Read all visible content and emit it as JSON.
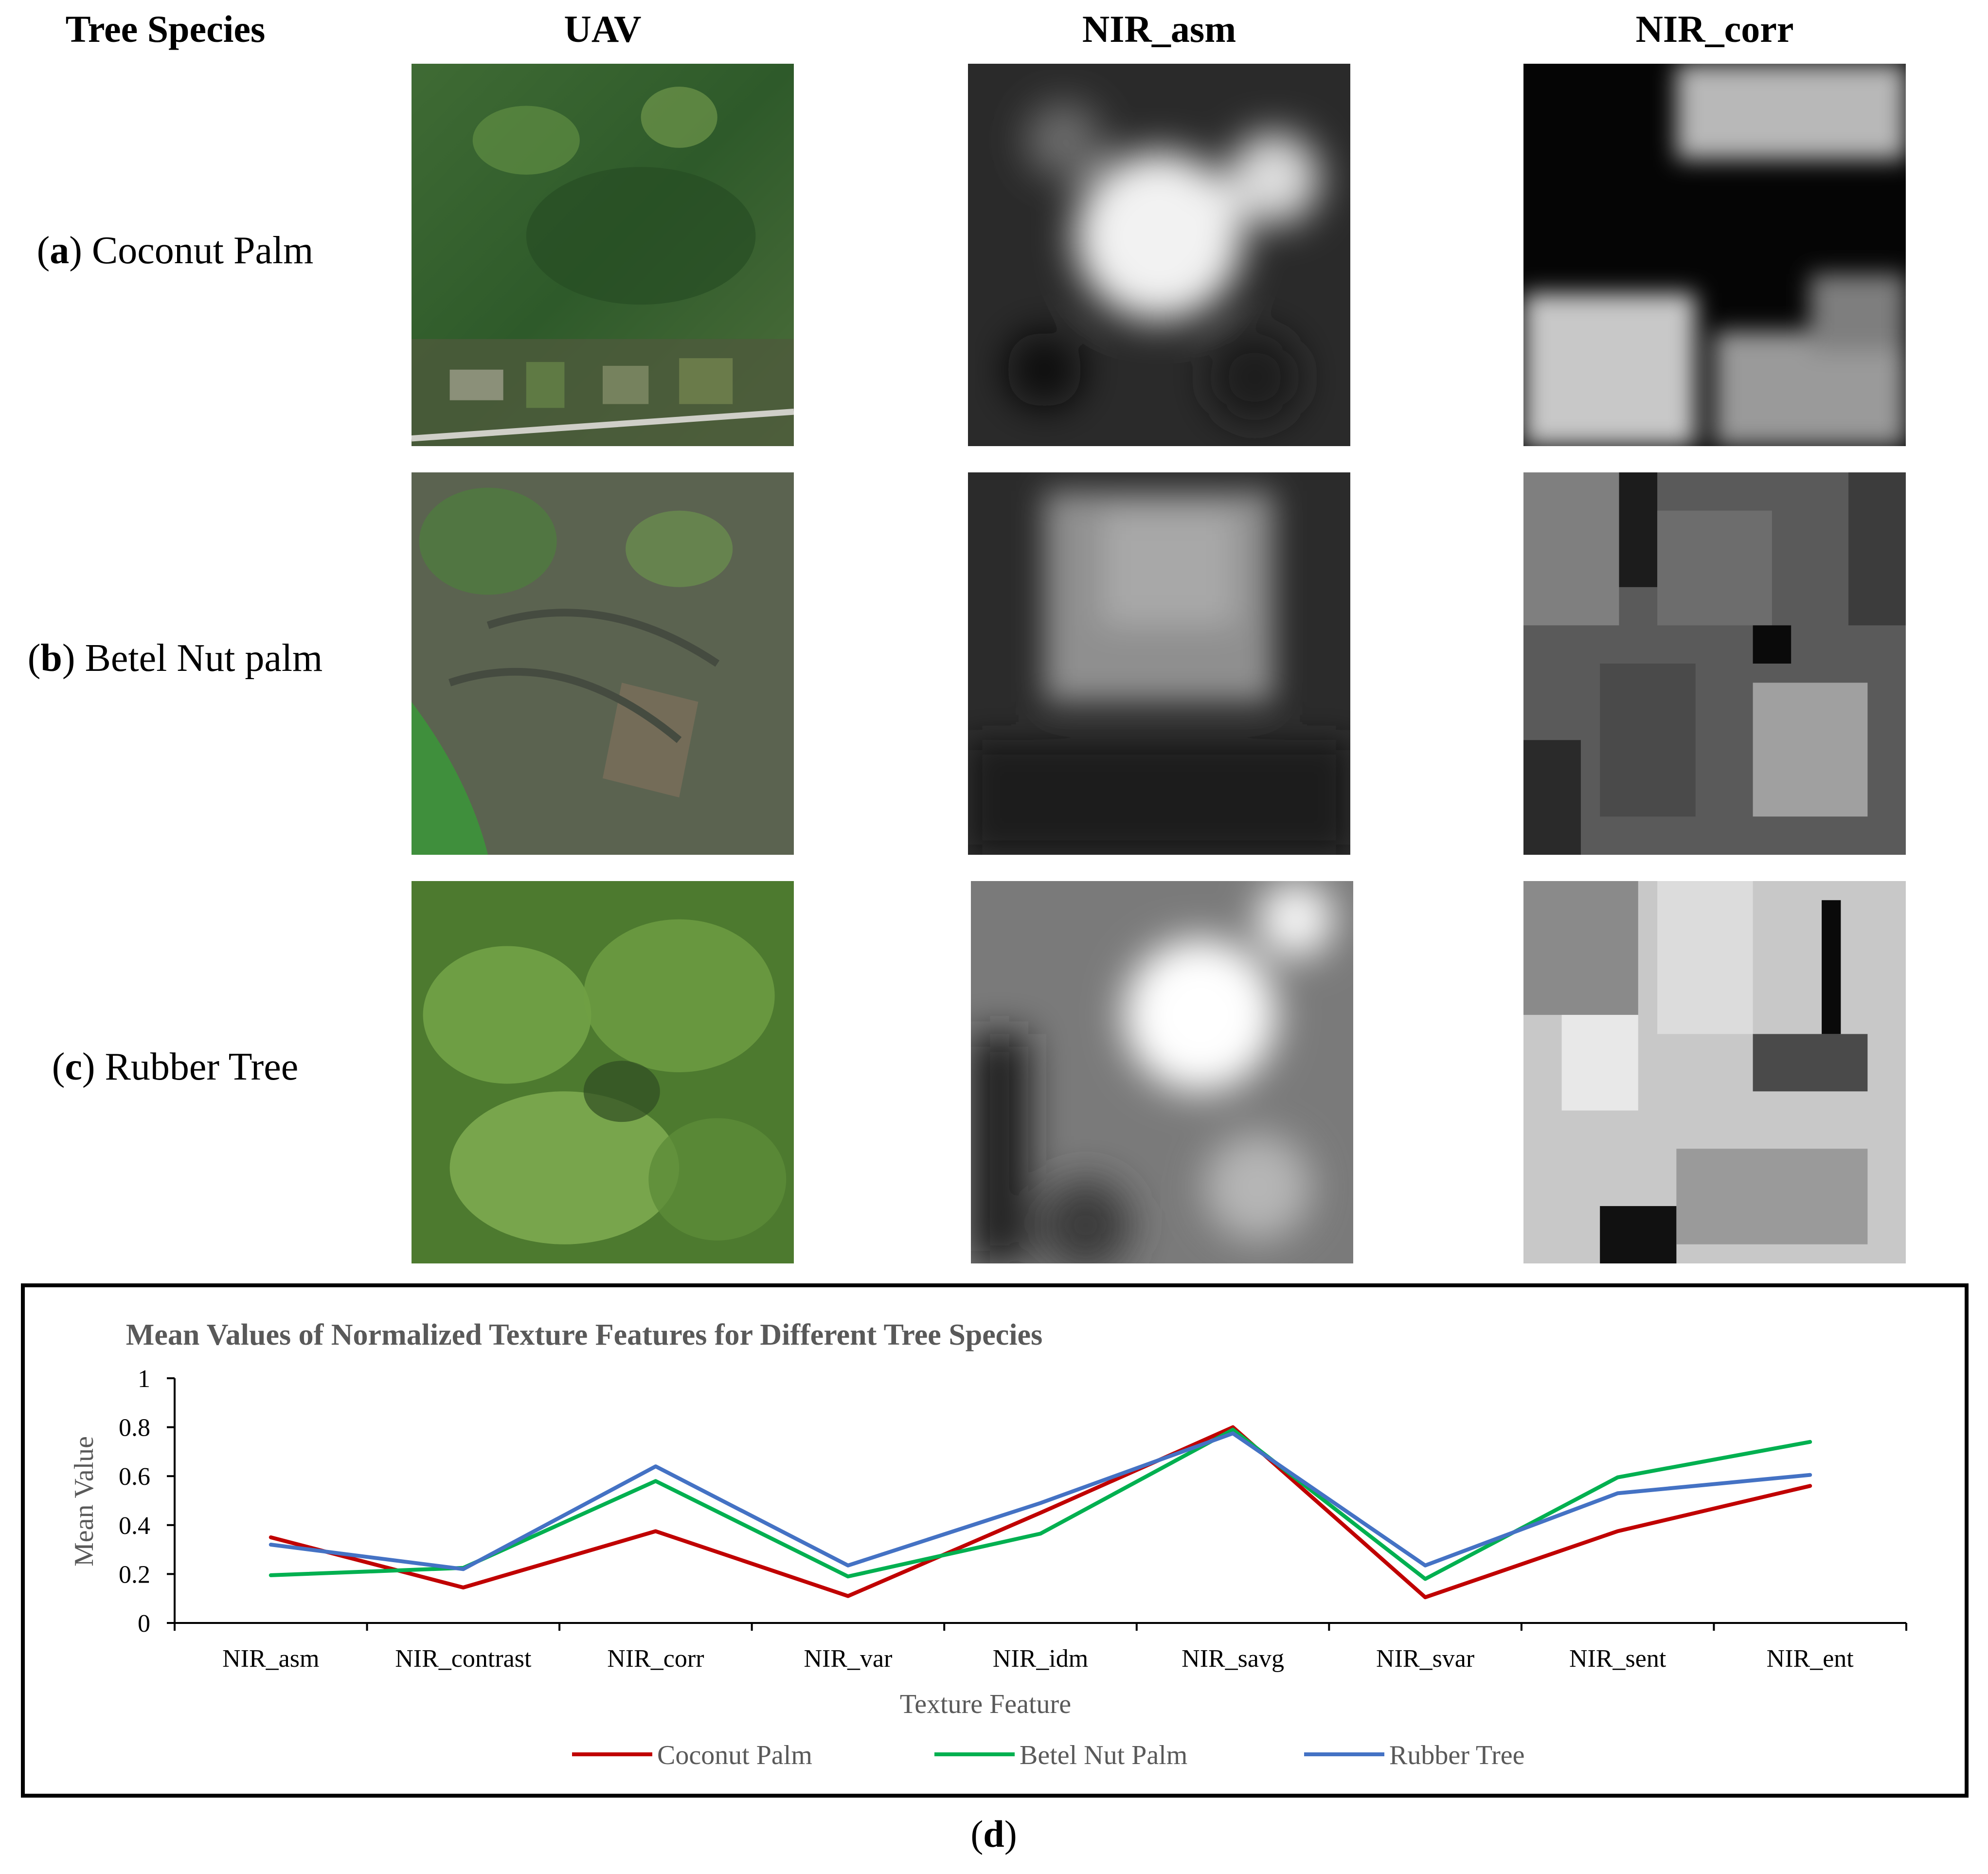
{
  "headers": [
    "Tree Species",
    "UAV",
    "NIR_asm",
    "NIR_corr"
  ],
  "rows": [
    {
      "letter": "a",
      "species": " Coconut Palm"
    },
    {
      "letter": "b",
      "species": " Betel Nut palm"
    },
    {
      "letter": "c",
      "species": " Rubber Tree"
    }
  ],
  "panel_label": "d",
  "chart_data": {
    "type": "line",
    "title": "Mean Values of Normalized Texture Features for Different Tree Species",
    "xlabel": "Texture Feature",
    "ylabel": "Mean Value",
    "ylim": [
      0,
      1
    ],
    "yticks": [
      0,
      0.2,
      0.4,
      0.6,
      0.8,
      1
    ],
    "ytick_labels": [
      "0",
      "0.2",
      "0.4",
      "0.6",
      "0.8",
      "1"
    ],
    "categories": [
      "NIR_asm",
      "NIR_contrast",
      "NIR_corr",
      "NIR_var",
      "NIR_idm",
      "NIR_savg",
      "NIR_svar",
      "NIR_sent",
      "NIR_ent"
    ],
    "series": [
      {
        "name": "Coconut Palm",
        "color": "#c00000",
        "values": [
          0.35,
          0.145,
          0.375,
          0.11,
          0.45,
          0.8,
          0.105,
          0.375,
          0.56
        ]
      },
      {
        "name": "Betel Nut Palm",
        "color": "#00b050",
        "values": [
          0.195,
          0.225,
          0.58,
          0.19,
          0.365,
          0.79,
          0.18,
          0.595,
          0.74
        ]
      },
      {
        "name": "Rubber Tree",
        "color": "#4472c4",
        "values": [
          0.32,
          0.22,
          0.64,
          0.235,
          0.49,
          0.775,
          0.235,
          0.53,
          0.605
        ]
      }
    ],
    "grid": false,
    "legend": "bottom"
  }
}
